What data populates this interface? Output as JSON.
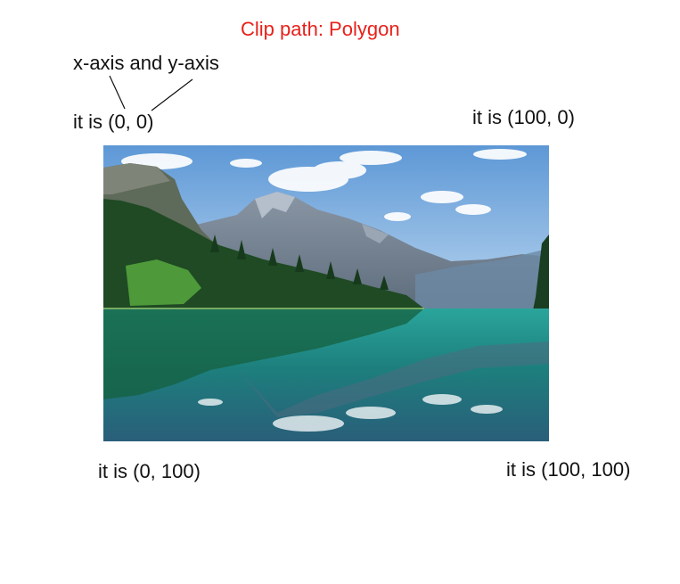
{
  "title": "Clip path: Polygon",
  "axis_label": "x-axis and y-axis",
  "corners": {
    "top_left": "it is (0, 0)",
    "top_right": "it is (100, 0)",
    "bottom_left": "it is (0, 100)",
    "bottom_right": "it is (100, 100)"
  },
  "colors": {
    "title": "#e8201a",
    "text": "#111111",
    "sky": "#6aa3dc",
    "water": "#1f8f8a",
    "forest": "#1f4a24"
  },
  "image": {
    "subject": "mountain lake landscape"
  }
}
